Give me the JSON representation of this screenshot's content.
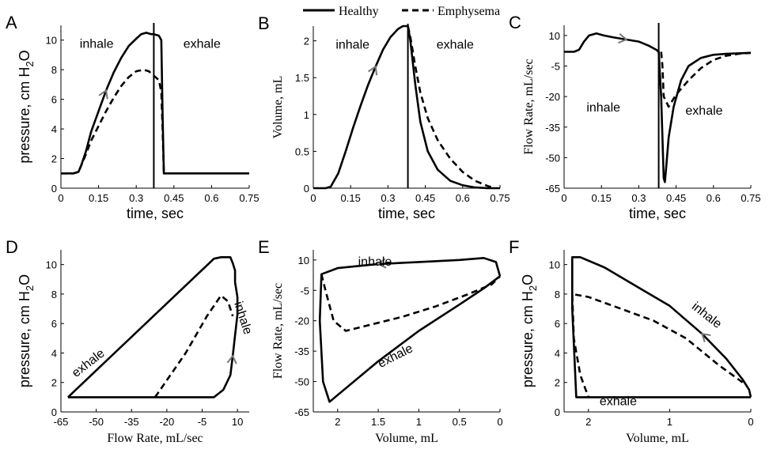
{
  "legend": {
    "healthy": "Healthy",
    "emphysema": "Emphysema"
  },
  "chart_data": [
    {
      "id": "A",
      "panel_label": "A",
      "type": "line",
      "xlabel": "time, sec",
      "ylabel": "pressure, cm H2O",
      "xlim": [
        0,
        0.75
      ],
      "ylim": [
        0,
        11
      ],
      "xticks": [
        "0",
        "0.15",
        "0.3",
        "0.45",
        "0.6",
        "0.75"
      ],
      "yticks": [
        "0",
        "2",
        "4",
        "6",
        "8",
        "10"
      ],
      "vline": 0.37,
      "annotations": [
        "inhale",
        "exhale"
      ],
      "series": [
        {
          "name": "Healthy",
          "style": "solid",
          "x": [
            0,
            0.02,
            0.05,
            0.07,
            0.08,
            0.1,
            0.12,
            0.15,
            0.18,
            0.21,
            0.24,
            0.27,
            0.3,
            0.32,
            0.34,
            0.36,
            0.37,
            0.39,
            0.4,
            0.405,
            0.41,
            0.5,
            0.6,
            0.75
          ],
          "y": [
            1.0,
            1.0,
            1.0,
            1.1,
            1.5,
            2.5,
            3.8,
            5.2,
            6.6,
            7.8,
            8.8,
            9.6,
            10.1,
            10.4,
            10.5,
            10.4,
            10.4,
            10.3,
            10.0,
            5.0,
            1.0,
            1.0,
            1.0,
            1.0
          ]
        },
        {
          "name": "Emphysema",
          "style": "dashed",
          "x": [
            0,
            0.05,
            0.07,
            0.08,
            0.1,
            0.12,
            0.15,
            0.18,
            0.21,
            0.24,
            0.27,
            0.3,
            0.33,
            0.35,
            0.37,
            0.39,
            0.4,
            0.405,
            0.41
          ],
          "y": [
            1.0,
            1.0,
            1.1,
            1.5,
            2.3,
            3.2,
            4.2,
            5.2,
            6.1,
            6.9,
            7.5,
            7.9,
            8.0,
            7.9,
            7.6,
            7.3,
            6.5,
            4.0,
            1.0
          ]
        }
      ]
    },
    {
      "id": "B",
      "panel_label": "B",
      "type": "line",
      "xlabel": "time, sec",
      "ylabel": "Volume, mL",
      "xlim": [
        0,
        0.75
      ],
      "ylim": [
        0,
        2.2
      ],
      "xticks": [
        "0",
        "0.15",
        "0.3",
        "0.45",
        "0.6",
        "0.75"
      ],
      "yticks": [
        "0",
        "0.5",
        "1",
        "1.5",
        "2"
      ],
      "vline": 0.38,
      "annotations": [
        "inhale",
        "exhale"
      ],
      "series": [
        {
          "name": "Healthy",
          "style": "solid",
          "x": [
            0,
            0.05,
            0.07,
            0.1,
            0.13,
            0.16,
            0.19,
            0.22,
            0.25,
            0.28,
            0.31,
            0.34,
            0.36,
            0.38,
            0.39,
            0.41,
            0.43,
            0.46,
            0.5,
            0.55,
            0.6,
            0.65,
            0.7,
            0.75
          ],
          "y": [
            0,
            0,
            0.02,
            0.2,
            0.5,
            0.82,
            1.12,
            1.4,
            1.65,
            1.88,
            2.05,
            2.16,
            2.2,
            2.2,
            2.0,
            1.4,
            0.9,
            0.5,
            0.25,
            0.1,
            0.04,
            0.01,
            0,
            0
          ]
        },
        {
          "name": "Emphysema",
          "style": "dashed",
          "x": [
            0.38,
            0.39,
            0.41,
            0.43,
            0.46,
            0.5,
            0.55,
            0.6,
            0.65,
            0.7,
            0.73
          ],
          "y": [
            2.2,
            2.05,
            1.65,
            1.3,
            0.95,
            0.65,
            0.4,
            0.22,
            0.1,
            0.03,
            0
          ]
        }
      ]
    },
    {
      "id": "C",
      "panel_label": "C",
      "type": "line",
      "xlabel": "time, sec",
      "ylabel": "Flow Rate, mL/sec",
      "xlim": [
        0,
        0.75
      ],
      "ylim": [
        -65,
        15
      ],
      "xticks": [
        "0",
        "0.15",
        "0.3",
        "0.45",
        "0.6",
        "0.75"
      ],
      "yticks": [
        "10",
        "-5",
        "-20",
        "-35",
        "-50",
        "-65"
      ],
      "vline": 0.38,
      "annotations": [
        "inhale",
        "exhale"
      ],
      "series": [
        {
          "name": "Healthy",
          "style": "solid",
          "x": [
            0,
            0.04,
            0.06,
            0.08,
            0.1,
            0.13,
            0.16,
            0.2,
            0.25,
            0.3,
            0.34,
            0.37,
            0.38,
            0.39,
            0.4,
            0.405,
            0.41,
            0.42,
            0.44,
            0.47,
            0.5,
            0.55,
            0.6,
            0.65,
            0.75
          ],
          "y": [
            2,
            2,
            3,
            7,
            10,
            11,
            10,
            9,
            8,
            7,
            5,
            3,
            2,
            -20,
            -60,
            -62,
            -55,
            -40,
            -25,
            -12,
            -5,
            -1,
            0.5,
            1,
            1.5
          ]
        },
        {
          "name": "Emphysema",
          "style": "dashed",
          "x": [
            0.39,
            0.395,
            0.4,
            0.42,
            0.45,
            0.5,
            0.55,
            0.6,
            0.65,
            0.7,
            0.75
          ],
          "y": [
            2,
            -5,
            -20,
            -25,
            -19,
            -12,
            -6,
            -2,
            0,
            1,
            1.5
          ]
        }
      ]
    },
    {
      "id": "D",
      "panel_label": "D",
      "type": "line",
      "xlabel": "Flow Rate, mL/sec",
      "ylabel": "pressure, cm H2O",
      "xlim": [
        -65,
        15
      ],
      "ylim": [
        0,
        11
      ],
      "xticks": [
        "-65",
        "-50",
        "-35",
        "-20",
        "-5",
        "10"
      ],
      "yticks": [
        "0",
        "2",
        "4",
        "6",
        "8",
        "10"
      ],
      "annotations": [
        "exhale",
        "inhale"
      ],
      "series": [
        {
          "name": "Healthy",
          "style": "solid",
          "x": [
            -62,
            -20,
            0,
            4,
            7,
            8,
            9,
            10,
            10,
            9,
            9,
            8,
            7,
            3,
            0,
            -62
          ],
          "y": [
            1,
            1,
            1,
            1.5,
            2.5,
            3.8,
            5.2,
            6.6,
            7.8,
            8.8,
            9.6,
            10.1,
            10.5,
            10.5,
            10.4,
            1
          ]
        },
        {
          "name": "Emphysema",
          "style": "dashed",
          "x": [
            -25,
            -12,
            -3,
            3,
            6,
            8
          ],
          "y": [
            1,
            4,
            6.5,
            7.9,
            7.5,
            6.5
          ]
        }
      ]
    },
    {
      "id": "E",
      "panel_label": "E",
      "type": "line",
      "xlabel": "Volume, mL",
      "ylabel": "Flow Rate, mL/sec",
      "xlim": [
        2.3,
        0
      ],
      "ylim": [
        -65,
        15
      ],
      "xticks": [
        "2",
        "1.5",
        "1",
        "0.5",
        "0"
      ],
      "yticks": [
        "10",
        "-5",
        "-20",
        "-35",
        "-50",
        "-65"
      ],
      "annotations": [
        "inhale",
        "exhale"
      ],
      "series": [
        {
          "name": "Healthy",
          "style": "solid",
          "x": [
            0,
            0.05,
            0.2,
            0.5,
            1.0,
            1.5,
            2.0,
            2.2,
            2.22,
            2.18,
            2.1,
            1.5,
            1.0,
            0.5,
            0.2,
            0
          ],
          "y": [
            2,
            9,
            11,
            10,
            9,
            8,
            6,
            3,
            -20,
            -50,
            -60,
            -40,
            -25,
            -12,
            -4,
            2
          ]
        },
        {
          "name": "Emphysema",
          "style": "dashed",
          "x": [
            2.2,
            2.15,
            2.05,
            1.9,
            1.6,
            1.2,
            0.8,
            0.4,
            0.1,
            0
          ],
          "y": [
            3,
            -5,
            -20,
            -25,
            -22,
            -18,
            -13,
            -7,
            -2,
            2
          ]
        }
      ]
    },
    {
      "id": "F",
      "panel_label": "F",
      "type": "line",
      "xlabel": "Volume, mL",
      "ylabel": "pressure, cm H2O",
      "xlim": [
        2.3,
        0
      ],
      "ylim": [
        0,
        11
      ],
      "xticks": [
        "2",
        "1",
        "0"
      ],
      "yticks": [
        "0",
        "2",
        "4",
        "6",
        "8",
        "10"
      ],
      "annotations": [
        "inhale",
        "exhale"
      ],
      "series": [
        {
          "name": "Healthy",
          "style": "solid",
          "x": [
            0,
            0.02,
            0.1,
            0.3,
            0.6,
            1.0,
            1.4,
            1.8,
            2.1,
            2.2,
            2.2,
            2.15,
            1.0,
            0
          ],
          "y": [
            1,
            1.5,
            2.2,
            3.6,
            5.3,
            7.2,
            8.5,
            9.8,
            10.5,
            10.5,
            7,
            1,
            1,
            1
          ]
        },
        {
          "name": "Emphysema",
          "style": "dashed",
          "x": [
            0.1,
            0.4,
            0.8,
            1.2,
            1.6,
            2.0,
            2.2,
            2.18,
            2.1,
            2.0
          ],
          "y": [
            2.0,
            3.2,
            5.0,
            6.2,
            7.0,
            7.8,
            8.0,
            5.0,
            2.5,
            1.0
          ]
        }
      ]
    }
  ]
}
